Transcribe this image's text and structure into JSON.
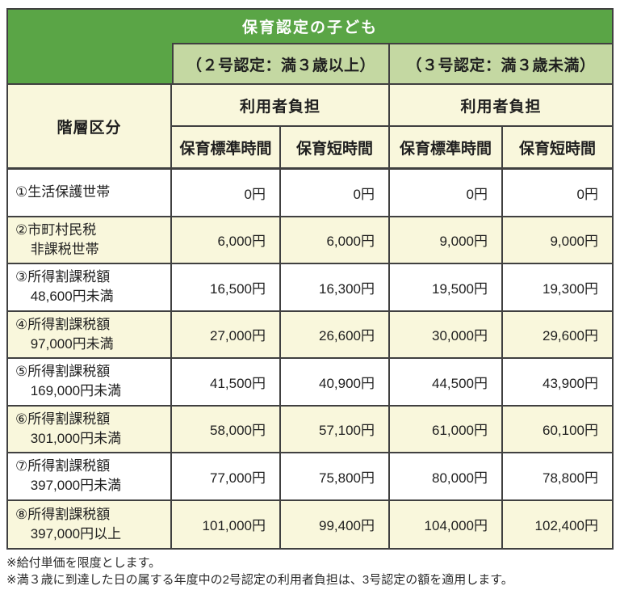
{
  "table": {
    "title": "保育認定の子ども",
    "groups": [
      {
        "label": "（２号認定：満３歳以上）"
      },
      {
        "label": "（３号認定：満３歳未満）"
      }
    ],
    "tier_label": "階層区分",
    "burden_label": "利用者負担",
    "time_headers": [
      "保育標準時間",
      "保育短時間"
    ],
    "rows": [
      {
        "label_line1": "①生活保護世帯",
        "label_line2": "",
        "values": [
          "0円",
          "0円",
          "0円",
          "0円"
        ]
      },
      {
        "label_line1": "②市町村民税",
        "label_line2": "非課税世帯",
        "values": [
          "6,000円",
          "6,000円",
          "9,000円",
          "9,000円"
        ]
      },
      {
        "label_line1": "③所得割課税額",
        "label_line2": "48,600円未満",
        "values": [
          "16,500円",
          "16,300円",
          "19,500円",
          "19,300円"
        ]
      },
      {
        "label_line1": "④所得割課税額",
        "label_line2": "97,000円未満",
        "values": [
          "27,000円",
          "26,600円",
          "30,000円",
          "29,600円"
        ]
      },
      {
        "label_line1": "⑤所得割課税額",
        "label_line2": "169,000円未満",
        "values": [
          "41,500円",
          "40,900円",
          "44,500円",
          "43,900円"
        ]
      },
      {
        "label_line1": "⑥所得割課税額",
        "label_line2": "301,000円未満",
        "values": [
          "58,000円",
          "57,100円",
          "61,000円",
          "60,100円"
        ]
      },
      {
        "label_line1": "⑦所得割課税額",
        "label_line2": "397,000円未満",
        "values": [
          "77,000円",
          "75,800円",
          "80,000円",
          "78,800円"
        ]
      },
      {
        "label_line1": "⑧所得割課税額",
        "label_line2": "397,000円以上",
        "values": [
          "101,000円",
          "99,400円",
          "104,000円",
          "102,400円"
        ]
      }
    ]
  },
  "footnotes": [
    "※給付単価を限度とします。",
    "※満３歳に到達した日の属する年度中の2号認定の利用者負担は、3号認定の額を適用します。"
  ],
  "colors": {
    "header_green": "#5aa546",
    "group_light_green": "#c4d8a2",
    "row_cream": "#f9f7dc",
    "border": "#404040",
    "title_text": "#ffffff"
  }
}
